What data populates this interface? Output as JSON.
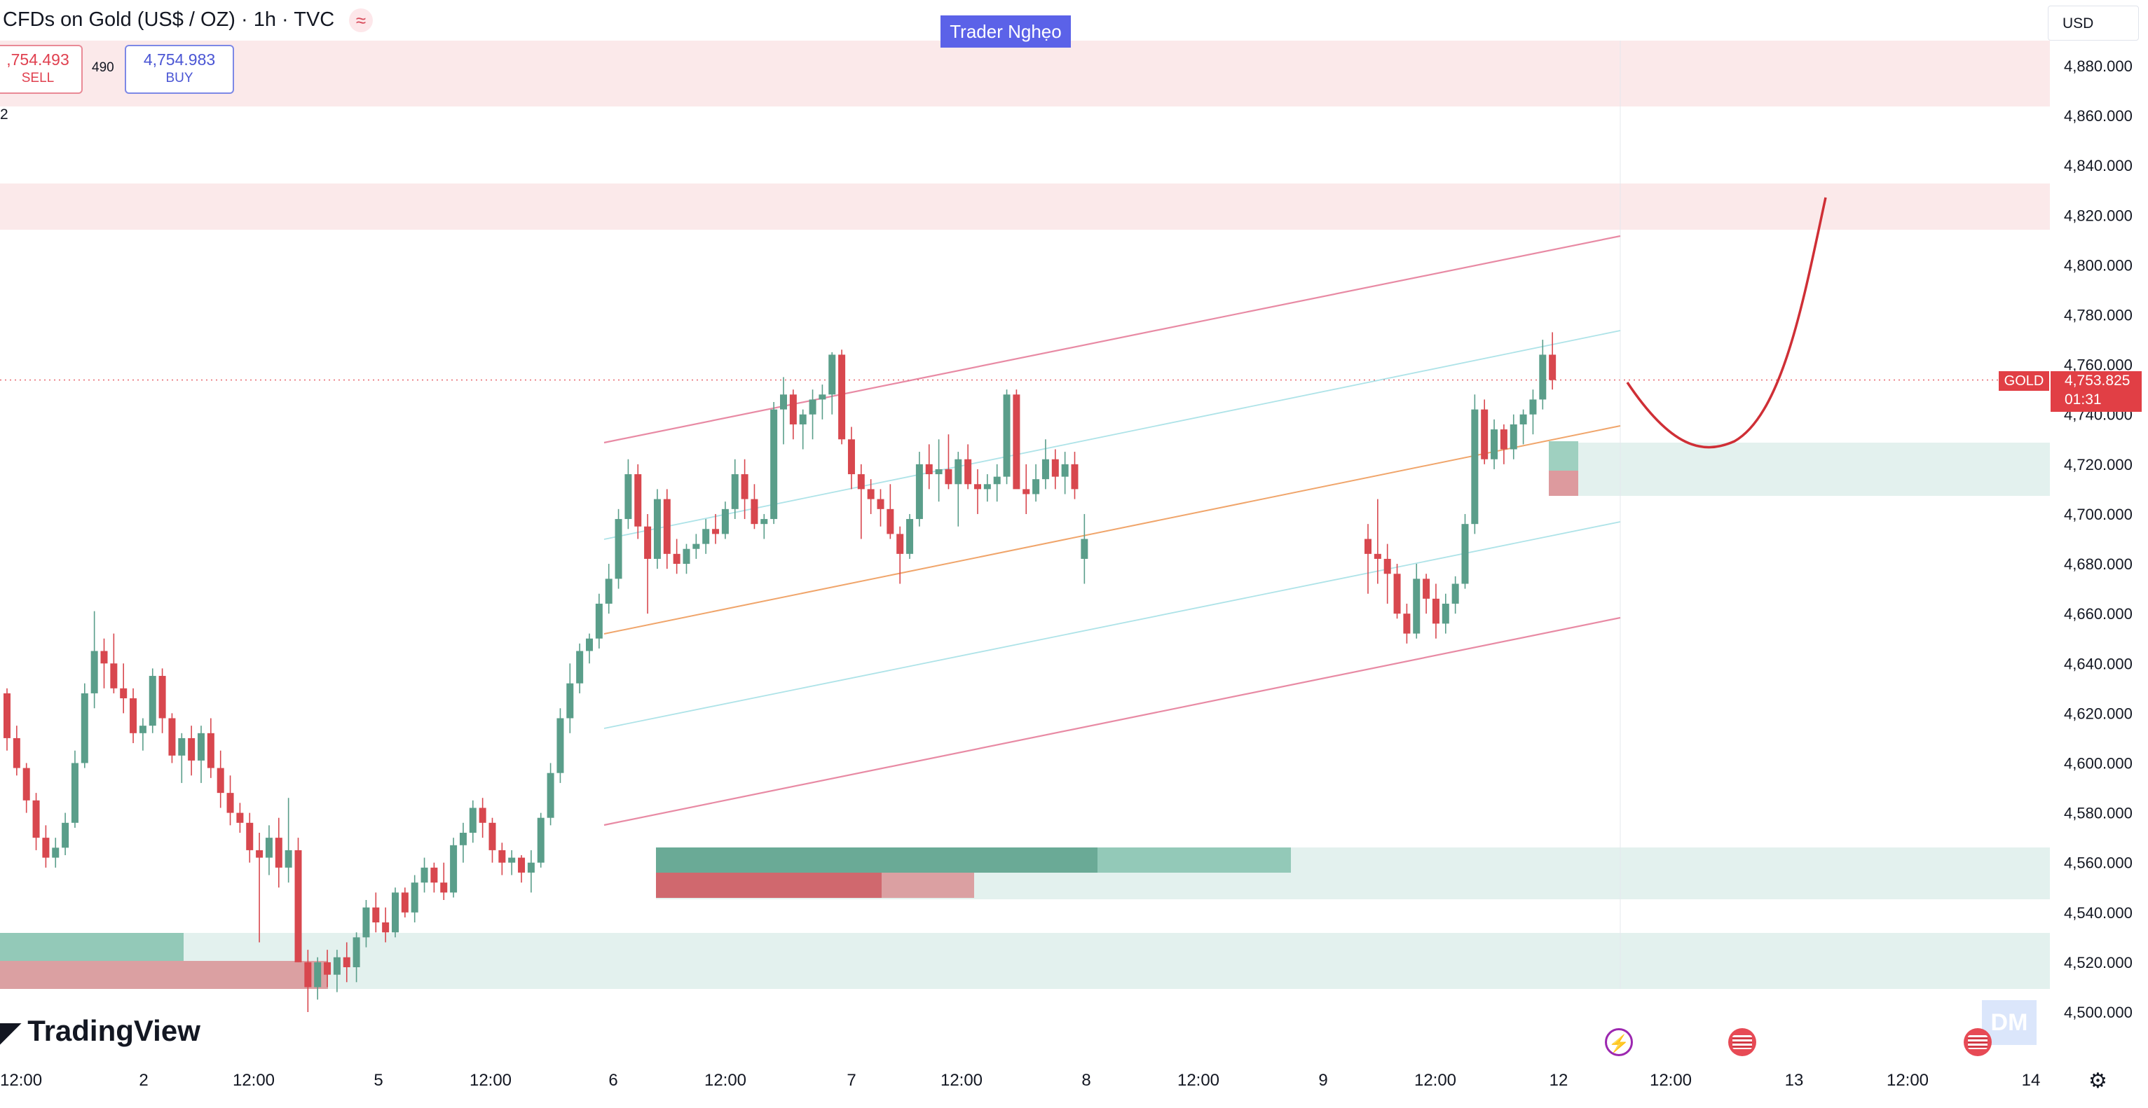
{
  "header": {
    "title": "CFDs on Gold (US$ / OZ) · 1h · TVC",
    "sell_price": ",754.493",
    "sell_label": "SELL",
    "spread": "490",
    "buy_price": "4,754.983",
    "buy_label": "BUY",
    "quantity": "2",
    "currency": "USD"
  },
  "brand_tag": "Trader Nghẹo",
  "logo_text": "TradingView",
  "watermark_text": "DM",
  "price_tag": {
    "symbol": "GOLD",
    "price": "4,753.825",
    "countdown": "01:31"
  },
  "icons": {
    "header": "waves-icon",
    "settings": "gear-icon",
    "event_a": "lightning-icon",
    "event_b": "us-flag-icon"
  },
  "chart_data": {
    "type": "candlestick",
    "y_ticks": [
      "4,500.000",
      "4,520.000",
      "4,540.000",
      "4,560.000",
      "4,580.000",
      "4,600.000",
      "4,620.000",
      "4,640.000",
      "4,660.000",
      "4,680.000",
      "4,700.000",
      "4,720.000",
      "4,740.000",
      "4,760.000",
      "4,780.000",
      "4,800.000",
      "4,820.000",
      "4,840.000",
      "4,860.000",
      "4,880.000"
    ],
    "x_ticks": [
      "12:00",
      "2",
      "12:00",
      "5",
      "12:00",
      "6",
      "12:00",
      "7",
      "12:00",
      "8",
      "12:00",
      "9",
      "12:00",
      "12",
      "12:00",
      "13",
      "12:00",
      "14"
    ],
    "ylim": [
      4490,
      4900
    ],
    "current_price": 4753.825,
    "colors": {
      "up": "#5a9e8a",
      "down": "#d8474e",
      "channel": "#e88aa4",
      "mid": "#f0a56b",
      "inner": "#aee3e8",
      "projection": "#cf2f36"
    },
    "candles": [
      [
        4628,
        4630,
        4605,
        4610
      ],
      [
        4610,
        4615,
        4595,
        4598
      ],
      [
        4598,
        4600,
        4580,
        4585
      ],
      [
        4585,
        4588,
        4565,
        4570
      ],
      [
        4570,
        4575,
        4558,
        4562
      ],
      [
        4562,
        4570,
        4558,
        4566
      ],
      [
        4566,
        4580,
        4563,
        4576
      ],
      [
        4576,
        4605,
        4574,
        4600
      ],
      [
        4600,
        4632,
        4598,
        4628
      ],
      [
        4628,
        4661,
        4622,
        4645
      ],
      [
        4645,
        4650,
        4630,
        4640
      ],
      [
        4640,
        4652,
        4628,
        4630
      ],
      [
        4630,
        4640,
        4620,
        4626
      ],
      [
        4626,
        4630,
        4608,
        4612
      ],
      [
        4612,
        4618,
        4605,
        4615
      ],
      [
        4615,
        4638,
        4612,
        4635
      ],
      [
        4635,
        4638,
        4612,
        4618
      ],
      [
        4618,
        4620,
        4600,
        4603
      ],
      [
        4603,
        4612,
        4592,
        4610
      ],
      [
        4610,
        4615,
        4595,
        4601
      ],
      [
        4601,
        4615,
        4592,
        4612
      ],
      [
        4612,
        4618,
        4594,
        4598
      ],
      [
        4598,
        4605,
        4582,
        4588
      ],
      [
        4588,
        4595,
        4575,
        4580
      ],
      [
        4580,
        4584,
        4572,
        4576
      ],
      [
        4576,
        4580,
        4560,
        4565
      ],
      [
        4565,
        4572,
        4528,
        4562
      ],
      [
        4562,
        4575,
        4555,
        4570
      ],
      [
        4570,
        4578,
        4550,
        4558
      ],
      [
        4558,
        4586,
        4552,
        4565
      ],
      [
        4565,
        4570,
        4520,
        4520
      ],
      [
        4520,
        4525,
        4500,
        4510
      ],
      [
        4510,
        4522,
        4505,
        4520
      ],
      [
        4520,
        4525,
        4510,
        4515
      ],
      [
        4515,
        4525,
        4508,
        4522
      ],
      [
        4522,
        4528,
        4512,
        4518
      ],
      [
        4518,
        4532,
        4512,
        4530
      ],
      [
        4530,
        4545,
        4526,
        4542
      ],
      [
        4542,
        4548,
        4532,
        4536
      ],
      [
        4536,
        4542,
        4528,
        4532
      ],
      [
        4532,
        4550,
        4530,
        4548
      ],
      [
        4548,
        4550,
        4538,
        4540
      ],
      [
        4540,
        4555,
        4536,
        4552
      ],
      [
        4552,
        4562,
        4548,
        4558
      ],
      [
        4558,
        4560,
        4548,
        4552
      ],
      [
        4552,
        4560,
        4545,
        4548
      ],
      [
        4548,
        4570,
        4546,
        4567
      ],
      [
        4567,
        4576,
        4560,
        4572
      ],
      [
        4572,
        4585,
        4568,
        4582
      ],
      [
        4582,
        4586,
        4570,
        4576
      ],
      [
        4576,
        4578,
        4560,
        4565
      ],
      [
        4565,
        4568,
        4555,
        4560
      ],
      [
        4560,
        4565,
        4555,
        4562
      ],
      [
        4562,
        4563,
        4552,
        4556
      ],
      [
        4556,
        4565,
        4548,
        4560
      ],
      [
        4560,
        4580,
        4558,
        4578
      ],
      [
        4578,
        4600,
        4575,
        4596
      ],
      [
        4596,
        4622,
        4592,
        4618
      ],
      [
        4618,
        4640,
        4612,
        4632
      ],
      [
        4632,
        4648,
        4628,
        4645
      ],
      [
        4645,
        4652,
        4640,
        4650
      ],
      [
        4650,
        4668,
        4646,
        4664
      ],
      [
        4664,
        4680,
        4660,
        4674
      ],
      [
        4674,
        4702,
        4670,
        4698
      ],
      [
        4698,
        4722,
        4694,
        4716
      ],
      [
        4716,
        4720,
        4690,
        4695
      ],
      [
        4695,
        4700,
        4660,
        4682
      ],
      [
        4682,
        4710,
        4678,
        4706
      ],
      [
        4706,
        4710,
        4678,
        4684
      ],
      [
        4684,
        4690,
        4676,
        4680
      ],
      [
        4680,
        4688,
        4676,
        4686
      ],
      [
        4686,
        4692,
        4682,
        4688
      ],
      [
        4688,
        4698,
        4684,
        4694
      ],
      [
        4694,
        4700,
        4688,
        4692
      ],
      [
        4692,
        4705,
        4690,
        4702
      ],
      [
        4702,
        4722,
        4698,
        4716
      ],
      [
        4716,
        4722,
        4698,
        4706
      ],
      [
        4706,
        4712,
        4694,
        4696
      ],
      [
        4696,
        4700,
        4690,
        4698
      ],
      [
        4698,
        4745,
        4696,
        4742
      ],
      [
        4742,
        4755,
        4728,
        4748
      ],
      [
        4748,
        4750,
        4730,
        4736
      ],
      [
        4736,
        4742,
        4726,
        4740
      ],
      [
        4740,
        4750,
        4730,
        4746
      ],
      [
        4746,
        4752,
        4738,
        4748
      ],
      [
        4748,
        4765,
        4740,
        4764
      ],
      [
        4764,
        4766,
        4728,
        4730
      ],
      [
        4730,
        4735,
        4710,
        4716
      ],
      [
        4716,
        4720,
        4690,
        4710
      ],
      [
        4710,
        4714,
        4700,
        4706
      ],
      [
        4706,
        4710,
        4695,
        4702
      ],
      [
        4702,
        4712,
        4690,
        4692
      ],
      [
        4692,
        4695,
        4672,
        4684
      ],
      [
        4684,
        4700,
        4682,
        4698
      ],
      [
        4698,
        4725,
        4695,
        4720
      ],
      [
        4720,
        4728,
        4710,
        4716
      ],
      [
        4716,
        4730,
        4705,
        4718
      ],
      [
        4718,
        4732,
        4710,
        4712
      ],
      [
        4712,
        4725,
        4695,
        4722
      ],
      [
        4722,
        4728,
        4710,
        4712
      ],
      [
        4712,
        4718,
        4700,
        4710
      ],
      [
        4710,
        4716,
        4705,
        4712
      ],
      [
        4712,
        4720,
        4705,
        4715
      ],
      [
        4715,
        4750,
        4712,
        4748
      ],
      [
        4748,
        4750,
        4714,
        4710
      ],
      [
        4710,
        4720,
        4700,
        4708
      ],
      [
        4708,
        4720,
        4705,
        4714
      ],
      [
        4714,
        4730,
        4710,
        4722
      ],
      [
        4722,
        4726,
        4710,
        4715
      ],
      [
        4715,
        4725,
        4708,
        4720
      ],
      [
        4720,
        4725,
        4706,
        4710
      ],
      [
        4682,
        4700,
        4672,
        4690
      ],
      [
        4690,
        4696,
        4668,
        4684
      ],
      [
        4684,
        4706,
        4672,
        4682
      ],
      [
        4682,
        4688,
        4664,
        4676
      ],
      [
        4676,
        4680,
        4658,
        4660
      ],
      [
        4660,
        4664,
        4648,
        4652
      ],
      [
        4652,
        4680,
        4650,
        4674
      ],
      [
        4674,
        4676,
        4660,
        4666
      ],
      [
        4666,
        4672,
        4650,
        4656
      ],
      [
        4656,
        4668,
        4652,
        4664
      ],
      [
        4664,
        4675,
        4660,
        4672
      ],
      [
        4672,
        4700,
        4670,
        4696
      ],
      [
        4696,
        4748,
        4692,
        4742
      ],
      [
        4742,
        4746,
        4720,
        4722
      ],
      [
        4722,
        4738,
        4718,
        4734
      ],
      [
        4734,
        4736,
        4720,
        4726
      ],
      [
        4726,
        4740,
        4722,
        4736
      ],
      [
        4736,
        4742,
        4728,
        4740
      ],
      [
        4740,
        4750,
        4732,
        4746
      ],
      [
        4746,
        4770,
        4742,
        4764
      ],
      [
        4764,
        4773,
        4750,
        4753.825
      ]
    ]
  }
}
